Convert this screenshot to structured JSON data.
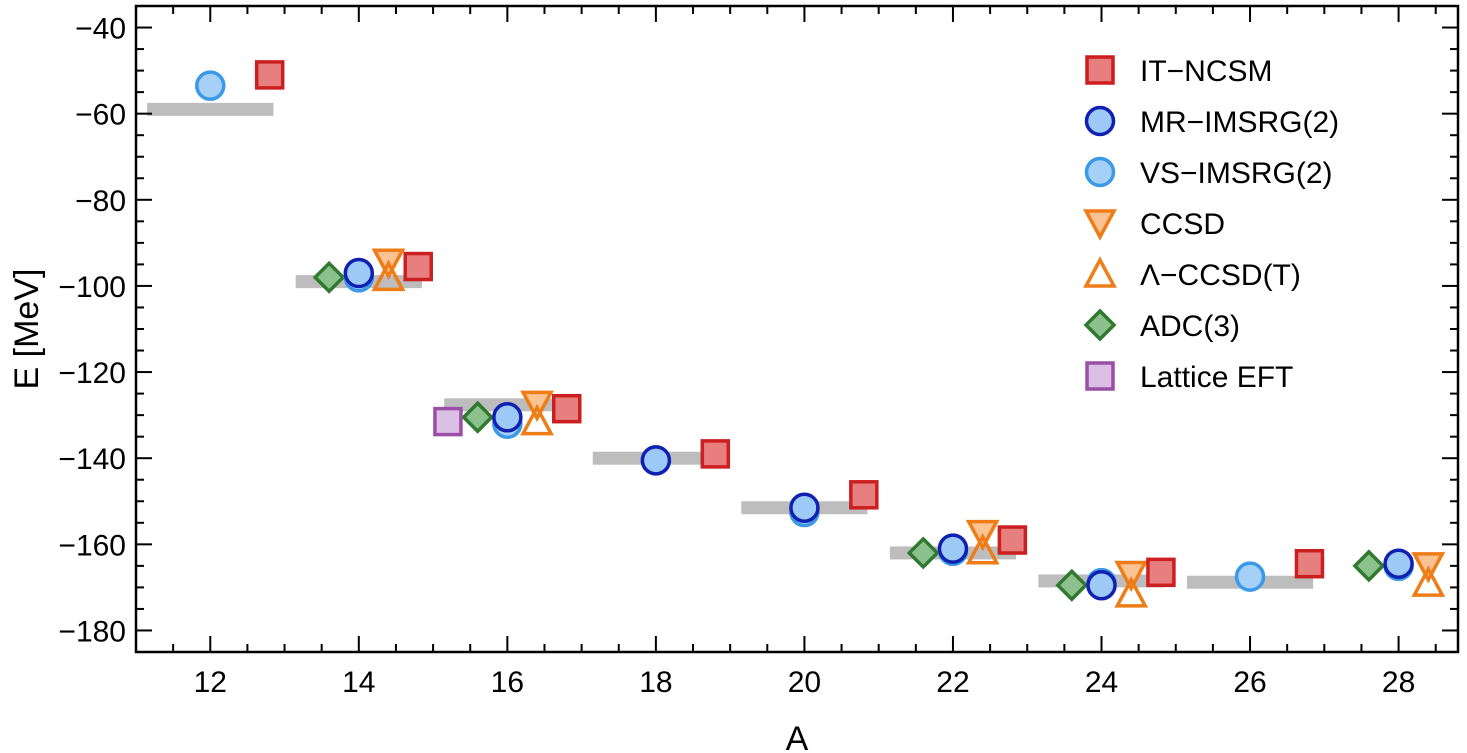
{
  "chart_data": {
    "type": "scatter",
    "title": "",
    "xlabel": "A",
    "ylabel": "E [MeV]",
    "xlim": [
      11,
      28.8
    ],
    "ylim": [
      -185,
      -35
    ],
    "xticks": [
      12,
      14,
      16,
      18,
      20,
      22,
      24,
      26,
      28
    ],
    "yticks": [
      -40,
      -60,
      -80,
      -100,
      -120,
      -140,
      -160,
      -180
    ],
    "legend_position": "top-right",
    "experiment": {
      "color": "#bdbdbd",
      "points": [
        {
          "A": 12,
          "E": -59.0
        },
        {
          "A": 14,
          "E": -99.0
        },
        {
          "A": 16,
          "E": -127.6
        },
        {
          "A": 18,
          "E": -140.0
        },
        {
          "A": 20,
          "E": -151.5
        },
        {
          "A": 22,
          "E": -162.0
        },
        {
          "A": 24,
          "E": -168.5
        },
        {
          "A": 26,
          "E": -168.8
        }
      ]
    },
    "series": [
      {
        "name": "IT−NCSM",
        "marker": "square",
        "stroke": "#cc1f1f",
        "fill": "#e77f7f",
        "offset": 0.8,
        "points": [
          [
            12,
            -51
          ],
          [
            14,
            -95.5
          ],
          [
            16,
            -128.5
          ],
          [
            18,
            -139
          ],
          [
            20,
            -148.5
          ],
          [
            22,
            -159
          ],
          [
            24,
            -166.5
          ],
          [
            26,
            -164.5
          ]
        ]
      },
      {
        "name": "MR−IMSRG(2)",
        "marker": "circle",
        "stroke": "#1020b0",
        "fill": "#9cc9f5",
        "offset": 0,
        "points": [
          [
            14,
            -97
          ],
          [
            16,
            -130.5
          ],
          [
            18,
            -140.5
          ],
          [
            20,
            -151.5
          ],
          [
            22,
            -161
          ],
          [
            24,
            -169.5
          ],
          [
            28,
            -164.5
          ]
        ]
      },
      {
        "name": "VS−IMSRG(2)",
        "marker": "circle",
        "stroke": "#3b9ae8",
        "fill": "#a6d0f7",
        "offset": 0,
        "points": [
          [
            12,
            -53.5
          ],
          [
            14,
            -98
          ],
          [
            16,
            -132
          ],
          [
            18,
            -140.5
          ],
          [
            20,
            -152.5
          ],
          [
            22,
            -161.5
          ],
          [
            24,
            -169
          ],
          [
            26,
            -167.5
          ],
          [
            28,
            -165
          ]
        ]
      },
      {
        "name": "CCSD",
        "marker": "triangle-down",
        "stroke": "#ee7d18",
        "fill": "#fbc293",
        "offset": 0.4,
        "points": [
          [
            14,
            -94.5
          ],
          [
            16,
            -127.5
          ],
          [
            22,
            -157.5
          ],
          [
            24,
            -167
          ],
          [
            28,
            -165
          ]
        ]
      },
      {
        "name": "Λ−CCSD(T)",
        "marker": "triangle-up",
        "stroke": "#ee7d18",
        "fill": "none",
        "offset": 0.4,
        "points": [
          [
            14,
            -98
          ],
          [
            16,
            -131.5
          ],
          [
            22,
            -161.5
          ],
          [
            24,
            -171.5
          ],
          [
            28,
            -169
          ]
        ]
      },
      {
        "name": "ADC(3)",
        "marker": "diamond",
        "stroke": "#2f7a2f",
        "fill": "#8cc08c",
        "offset": -0.4,
        "points": [
          [
            14,
            -98
          ],
          [
            16,
            -130.5
          ],
          [
            22,
            -162
          ],
          [
            24,
            -169.5
          ],
          [
            28,
            -165
          ]
        ]
      },
      {
        "name": "Lattice EFT",
        "marker": "square",
        "stroke": "#9a4ea6",
        "fill": "#dcbfe4",
        "offset": -0.8,
        "points": [
          [
            16,
            -131.5
          ]
        ]
      }
    ]
  }
}
